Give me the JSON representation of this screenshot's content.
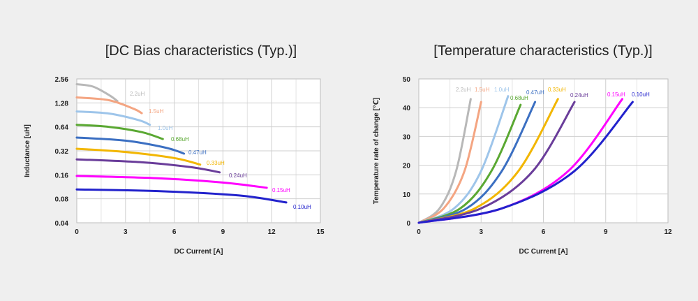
{
  "chart_data": [
    {
      "type": "line",
      "title": "[DC Bias characteristics (Typ.)]",
      "xlabel": "DC Current [A]",
      "ylabel": "Inductance [uH]",
      "xlim": [
        0,
        15
      ],
      "ylim": [
        0.04,
        2.56
      ],
      "yscale": "log2",
      "xticks": [
        "0",
        "3",
        "6",
        "9",
        "12",
        "15"
      ],
      "yticks": [
        "2.56",
        "1.28",
        "0.64",
        "0.32",
        "0.16",
        "0.08",
        "0.04"
      ],
      "grid": true,
      "series": [
        {
          "name": "2.2uH",
          "color": "#b8b8b8",
          "x": [
            0,
            1,
            2,
            2.5
          ],
          "y": [
            2.2,
            2.05,
            1.6,
            1.35
          ]
        },
        {
          "name": "1.5uH",
          "color": "#f4a582",
          "x": [
            0,
            2,
            3.5,
            4
          ],
          "y": [
            1.5,
            1.38,
            1.08,
            0.95
          ]
        },
        {
          "name": "1.0uH",
          "color": "#9ec5ea",
          "x": [
            0,
            2,
            3.8,
            4.5
          ],
          "y": [
            1.0,
            0.94,
            0.78,
            0.68
          ]
        },
        {
          "name": "0.68uH",
          "color": "#5aa832",
          "x": [
            0,
            2,
            4,
            5.3
          ],
          "y": [
            0.68,
            0.64,
            0.55,
            0.45
          ]
        },
        {
          "name": "0.47uH",
          "color": "#3b6fc2",
          "x": [
            0,
            3,
            5.5,
            6.6
          ],
          "y": [
            0.47,
            0.43,
            0.35,
            0.295
          ]
        },
        {
          "name": "0.33uH",
          "color": "#f2b600",
          "x": [
            0,
            3,
            6,
            7.6
          ],
          "y": [
            0.34,
            0.31,
            0.26,
            0.215
          ]
        },
        {
          "name": "0.24uH",
          "color": "#6a3d9a",
          "x": [
            0,
            4,
            7,
            8.8
          ],
          "y": [
            0.25,
            0.23,
            0.2,
            0.172
          ]
        },
        {
          "name": "0.15uH",
          "color": "#ff00ff",
          "x": [
            0,
            5,
            9,
            11.7
          ],
          "y": [
            0.155,
            0.145,
            0.128,
            0.11
          ]
        },
        {
          "name": "0.10uH",
          "color": "#2222cc",
          "x": [
            0,
            5,
            10,
            12.9
          ],
          "y": [
            0.105,
            0.1,
            0.088,
            0.072
          ]
        }
      ]
    },
    {
      "type": "line",
      "title": "[Temperature characteristics (Typ.)]",
      "xlabel": "DC Current [A]",
      "ylabel": "Temperature rate of change [℃]",
      "xlim": [
        0,
        12
      ],
      "ylim": [
        0,
        50
      ],
      "xticks": [
        "0",
        "3",
        "6",
        "9",
        "12"
      ],
      "yticks": [
        "0",
        "10",
        "20",
        "30",
        "40",
        "50"
      ],
      "grid": true,
      "series": [
        {
          "name": "2.2uH",
          "color": "#b8b8b8",
          "x": [
            0,
            1,
            1.8,
            2.5
          ],
          "y": [
            0,
            5,
            18,
            43
          ]
        },
        {
          "name": "1.5uH",
          "color": "#f4a582",
          "x": [
            0,
            1.2,
            2.2,
            3
          ],
          "y": [
            0,
            5,
            18,
            42
          ]
        },
        {
          "name": "1.0uH",
          "color": "#9ec5ea",
          "x": [
            0,
            1.7,
            3,
            4.3
          ],
          "y": [
            0,
            5,
            18,
            44
          ]
        },
        {
          "name": "0.68uH",
          "color": "#5aa832",
          "x": [
            0,
            2,
            3.5,
            4.9
          ],
          "y": [
            0,
            5,
            18,
            41
          ]
        },
        {
          "name": "0.47uH",
          "color": "#3b6fc2",
          "x": [
            0,
            2.3,
            4,
            5.6
          ],
          "y": [
            0,
            5,
            18,
            42
          ]
        },
        {
          "name": "0.33uH",
          "color": "#f2b600",
          "x": [
            0,
            2.7,
            4.8,
            6.7
          ],
          "y": [
            0,
            5,
            18,
            43
          ]
        },
        {
          "name": "0.24uH",
          "color": "#6a3d9a",
          "x": [
            0,
            3,
            5.5,
            7.5
          ],
          "y": [
            0,
            5,
            18,
            42
          ]
        },
        {
          "name": "0.15uH",
          "color": "#ff00ff",
          "x": [
            0,
            4,
            7.2,
            9.8
          ],
          "y": [
            0,
            5,
            18,
            43
          ]
        },
        {
          "name": "0.10uH",
          "color": "#2222cc",
          "x": [
            0,
            4,
            7.5,
            10.3
          ],
          "y": [
            0,
            5,
            18,
            42
          ]
        }
      ]
    }
  ]
}
